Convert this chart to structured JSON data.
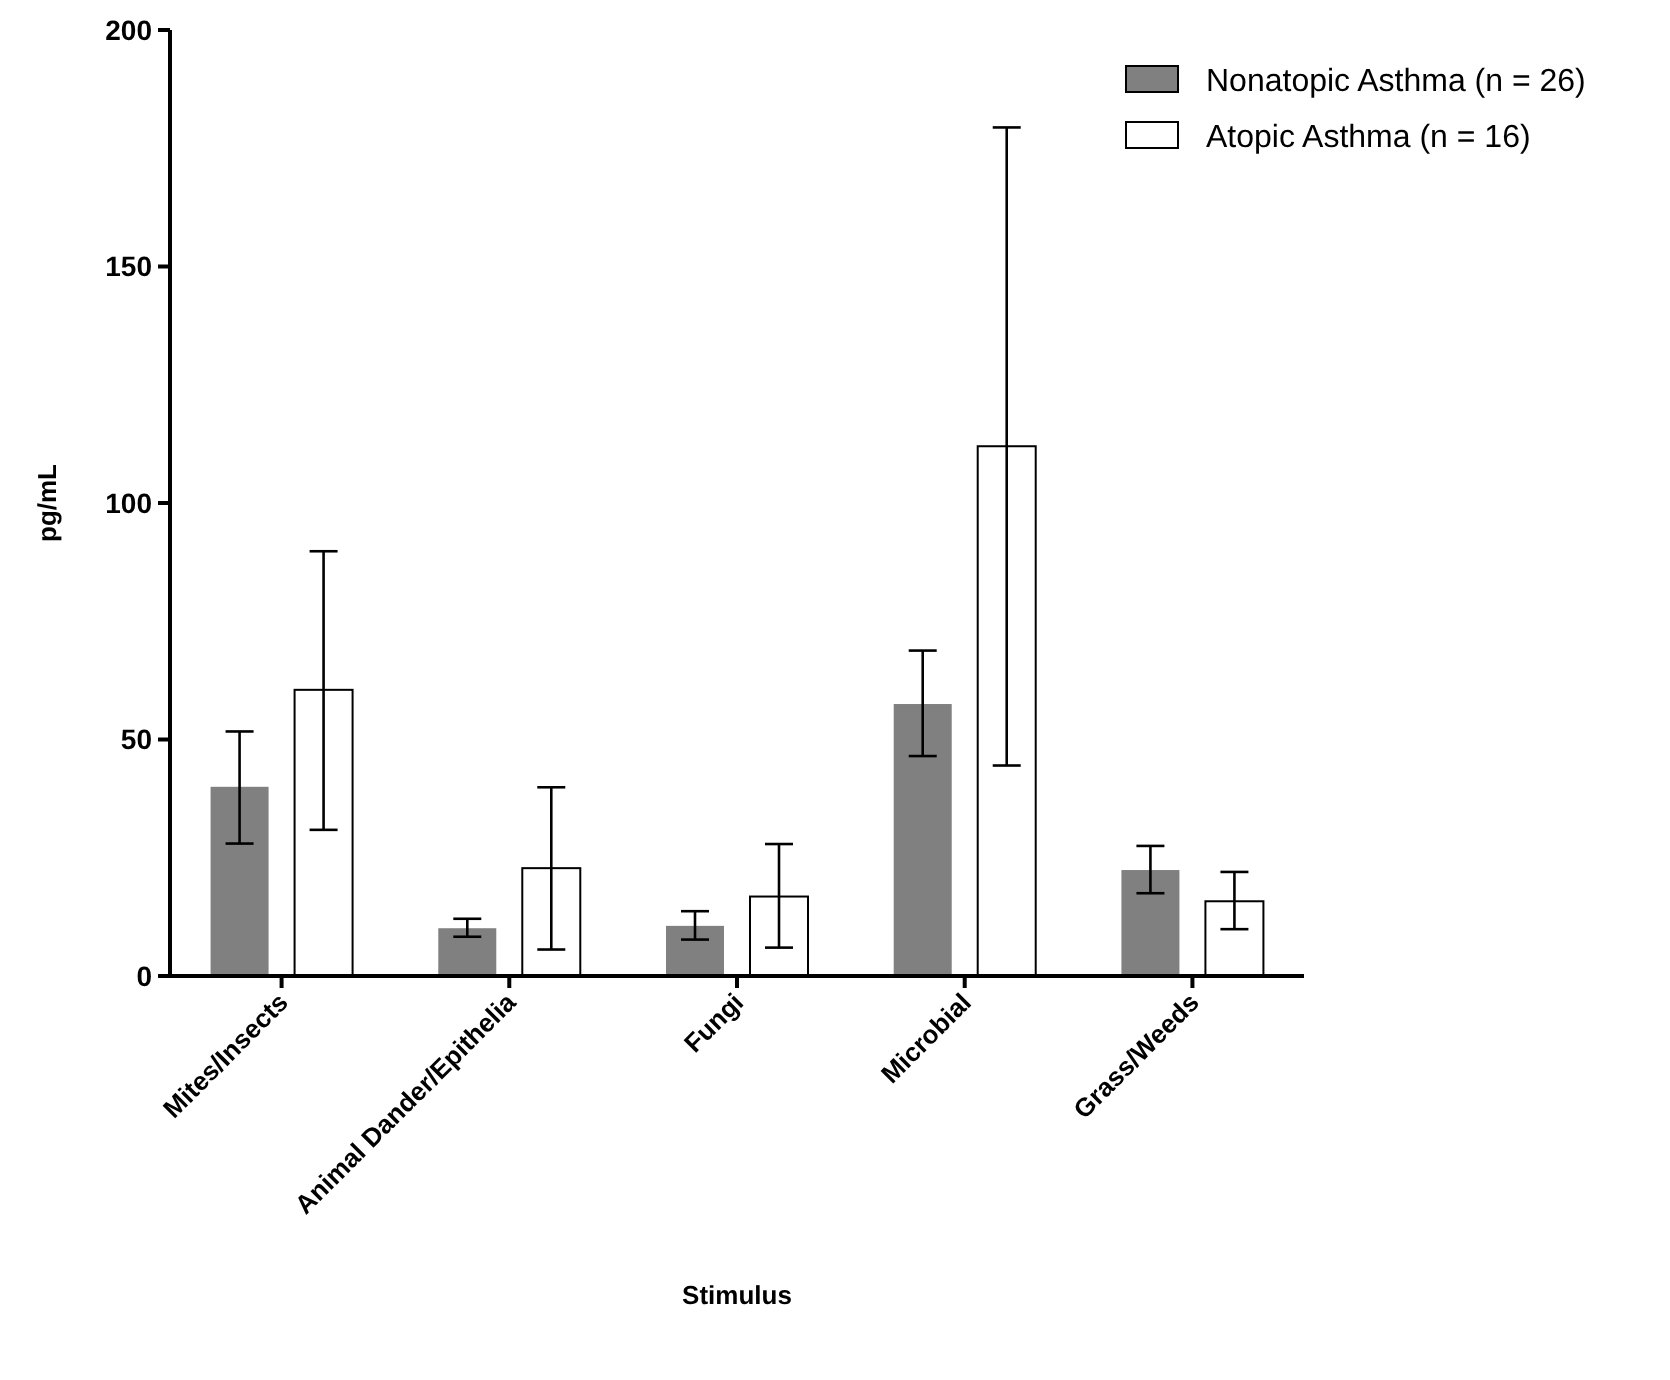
{
  "chart_data": {
    "type": "bar",
    "xlabel": "Stimulus",
    "ylabel": "pg/mL",
    "categories": [
      "Mites/Insects",
      "Animal Dander/Epithelia",
      "Fungi",
      "Microbial",
      "Grass/Weeds"
    ],
    "series": [
      {
        "name": "Nonatopic Asthma (n = 26)",
        "color": "#808080",
        "values": [
          40,
          10.1,
          10.6,
          57.5,
          22.4
        ],
        "errors": [
          [
            28,
            51.7
          ],
          [
            8.3,
            12.1
          ],
          [
            7.7,
            13.7
          ],
          [
            46.5,
            68.8
          ],
          [
            17.5,
            27.5
          ]
        ]
      },
      {
        "name": "Atopic Asthma (n = 16)",
        "color": "#ffffff",
        "values": [
          60.5,
          22.8,
          16.8,
          112,
          15.8
        ],
        "errors": [
          [
            30.9,
            89.8
          ],
          [
            5.6,
            39.9
          ],
          [
            6,
            27.9
          ],
          [
            44.5,
            179.4
          ],
          [
            9.9,
            22
          ]
        ]
      }
    ],
    "ylim": [
      0,
      200
    ],
    "yticks": [
      0,
      50,
      100,
      150,
      200
    ],
    "grid": false,
    "legend": "top right"
  }
}
